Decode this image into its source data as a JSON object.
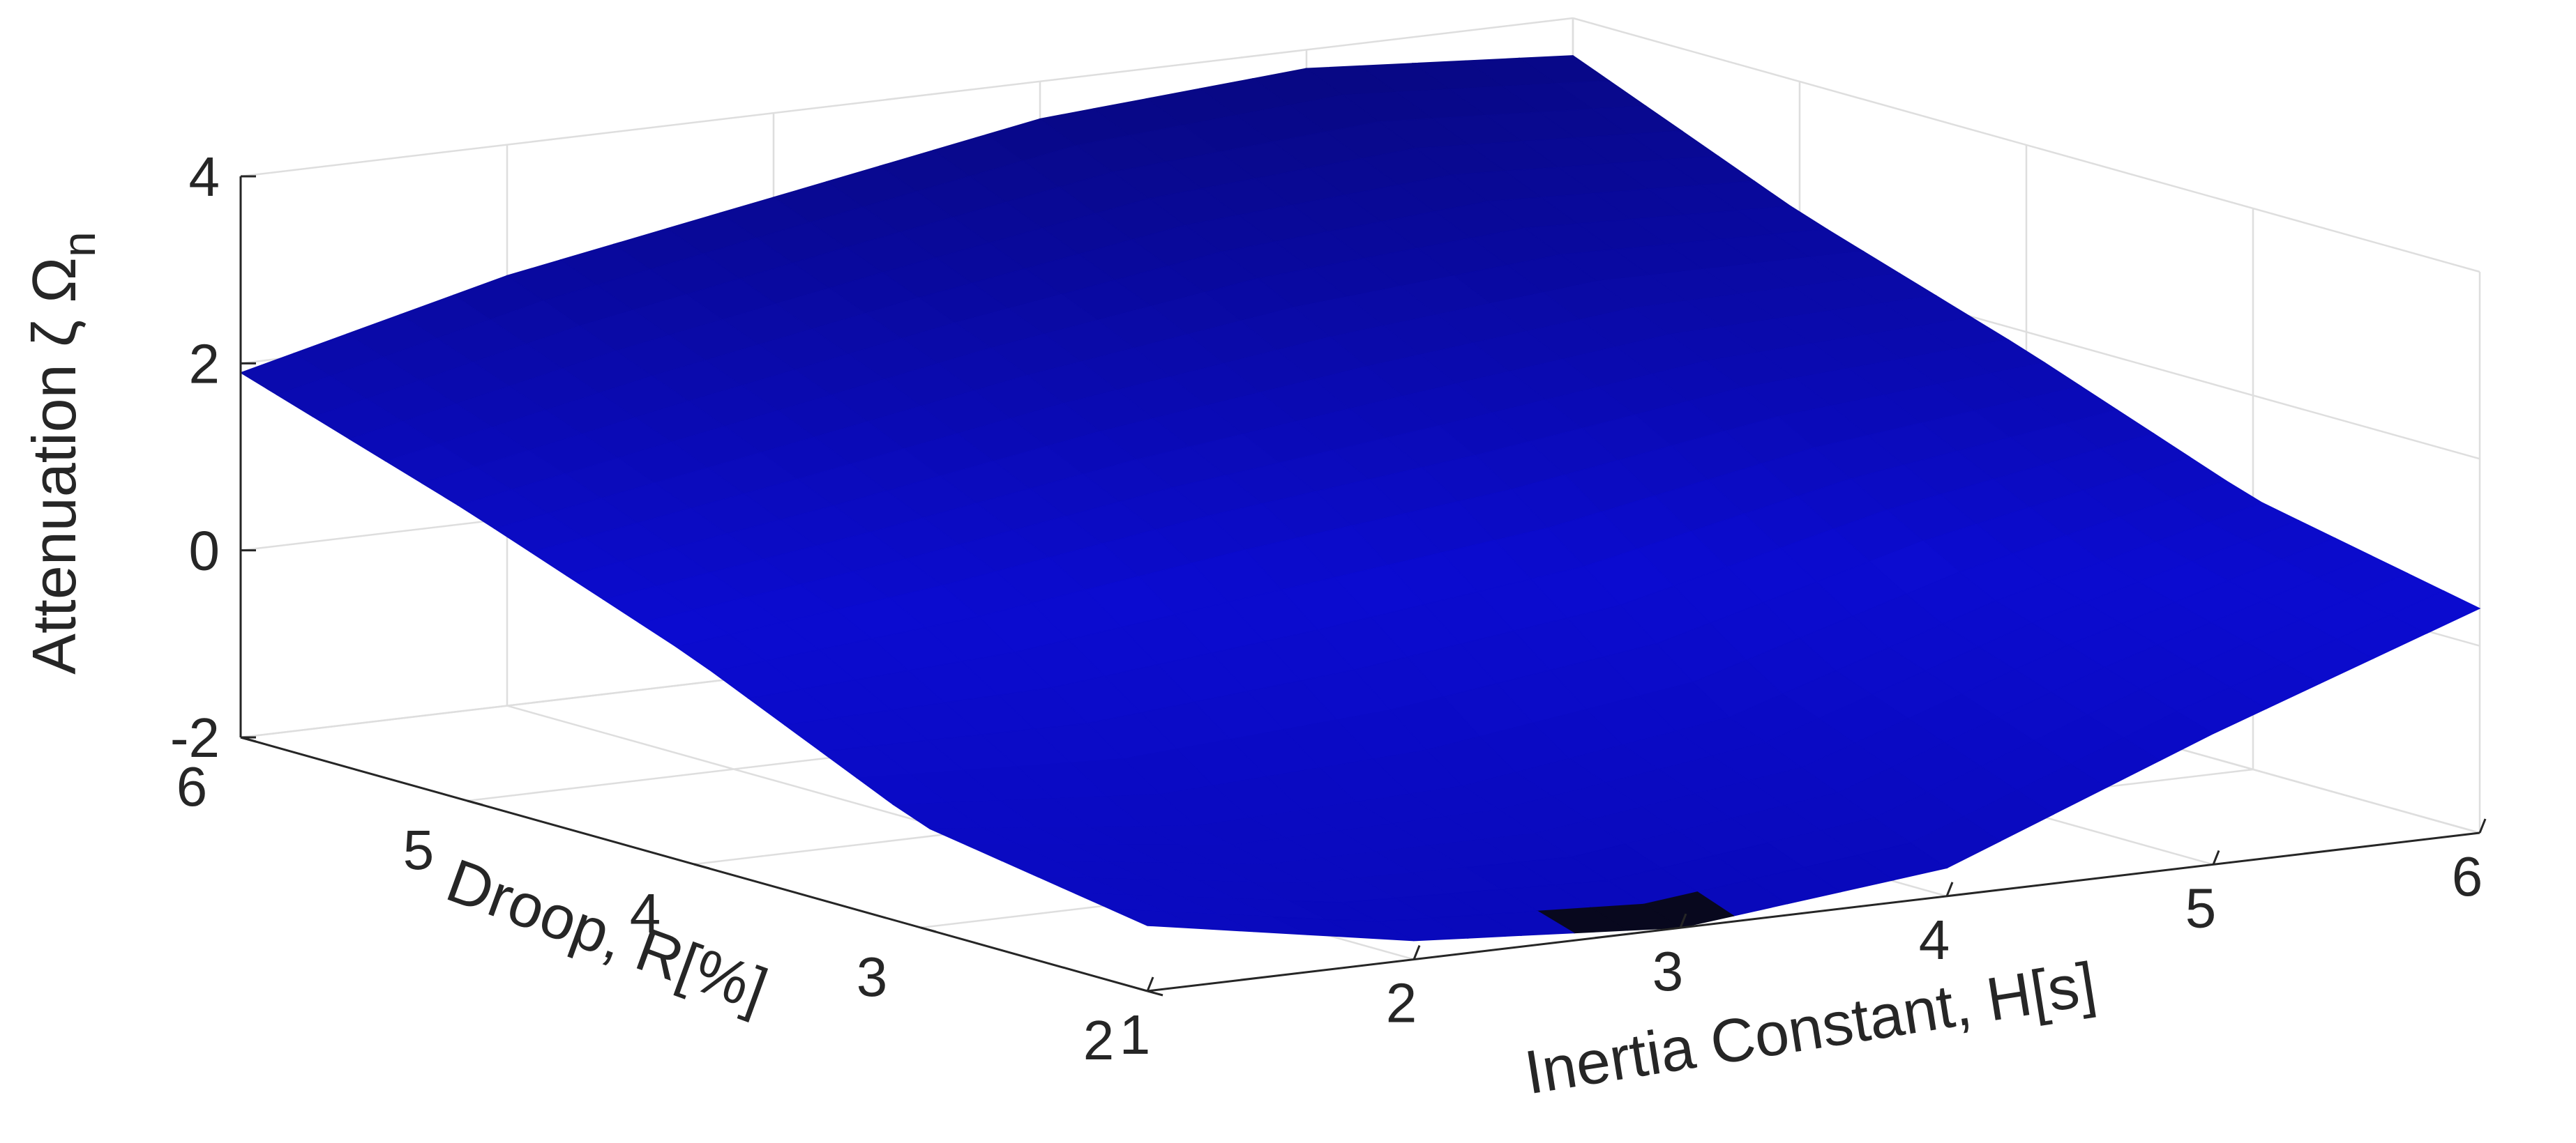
{
  "chart_data": {
    "type": "surface",
    "title": "",
    "xlabel": "Inertia Constant, H[s]",
    "ylabel": "Droop, R[%]",
    "zlabel_main": "Attenuation ζ Ω",
    "zlabel_sub": "n",
    "xlim": [
      1,
      6
    ],
    "ylim": [
      2,
      6
    ],
    "zlim": [
      -2,
      4
    ],
    "x_ticks": [
      "1",
      "2",
      "3",
      "4",
      "5",
      "6"
    ],
    "y_ticks": [
      "2",
      "3",
      "4",
      "5",
      "6"
    ],
    "z_ticks": [
      "-2",
      "0",
      "2",
      "4"
    ],
    "grid": true,
    "surface_color": "#0a0aa0",
    "H_values": [
      1,
      2,
      3,
      4,
      5,
      6
    ],
    "R_values": [
      2,
      3,
      4,
      5,
      6
    ],
    "attenuation": [
      [
        -1.3,
        -1.8,
        -2.0,
        -1.7,
        -0.6,
        0.4
      ],
      [
        -0.9,
        -1.2,
        -1.1,
        -0.7,
        0.2,
        0.9
      ],
      [
        0.2,
        0.5,
        0.9,
        1.2,
        1.6,
        1.8
      ],
      [
        1.1,
        1.6,
        2.1,
        2.5,
        2.7,
        2.6
      ],
      [
        1.9,
        2.6,
        3.1,
        3.6,
        3.8,
        3.6
      ]
    ]
  }
}
